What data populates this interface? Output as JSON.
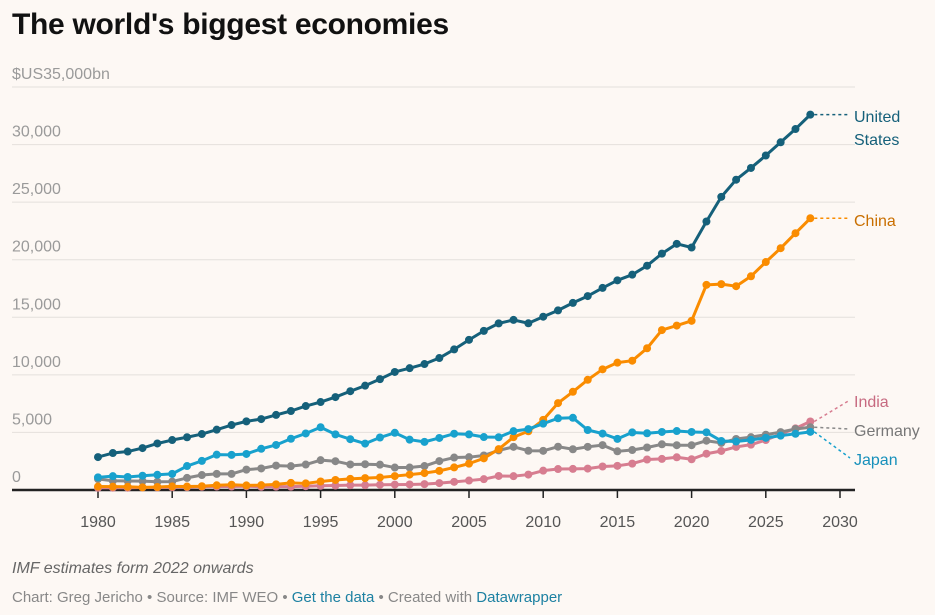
{
  "header": {
    "title": "The world's biggest economies"
  },
  "footer": {
    "note": "IMF estimates form 2022 onwards",
    "credit_prefix": "Chart: Greg Jericho • Source: IMF WEO • ",
    "get_data_link": "Get the data",
    "separator": " • Created with ",
    "datawrapper_link": "Datawrapper"
  },
  "chart_data": {
    "type": "line",
    "title": "The world's biggest economies",
    "xlabel": "",
    "ylabel": "$US bn",
    "ylim": [
      0,
      35000
    ],
    "xlim": [
      1980,
      2030
    ],
    "grid": true,
    "y_ticks": [
      0,
      5000,
      10000,
      15000,
      20000,
      25000,
      30000,
      35000
    ],
    "y_tick_labels": [
      "0",
      "5,000",
      "10,000",
      "15,000",
      "20,000",
      "25,000",
      "30,000",
      "$US35,000bn"
    ],
    "x_ticks": [
      1980,
      1985,
      1990,
      1995,
      2000,
      2005,
      2010,
      2015,
      2020,
      2025,
      2030
    ],
    "x_tick_labels": [
      "1980",
      "1985",
      "1990",
      "1995",
      "2000",
      "2005",
      "2010",
      "2015",
      "2020",
      "2025",
      "2030"
    ],
    "legend": "direct-labels-right",
    "annotation": "IMF estimates form 2022 onwards",
    "x": [
      1980,
      1981,
      1982,
      1983,
      1984,
      1985,
      1986,
      1987,
      1988,
      1989,
      1990,
      1991,
      1992,
      1993,
      1994,
      1995,
      1996,
      1997,
      1998,
      1999,
      2000,
      2001,
      2002,
      2003,
      2004,
      2005,
      2006,
      2007,
      2008,
      2009,
      2010,
      2011,
      2012,
      2013,
      2014,
      2015,
      2016,
      2017,
      2018,
      2019,
      2020,
      2021,
      2022,
      2023,
      2024,
      2025,
      2026,
      2027,
      2028
    ],
    "series": [
      {
        "name": "United States",
        "label": "United States",
        "color": "#15607a",
        "values": [
          2860,
          3210,
          3340,
          3640,
          4040,
          4340,
          4580,
          4860,
          5240,
          5640,
          5960,
          6160,
          6520,
          6860,
          7290,
          7640,
          8070,
          8580,
          9060,
          9630,
          10250,
          10580,
          10940,
          11460,
          12210,
          13040,
          13820,
          14470,
          14770,
          14480,
          15050,
          15600,
          16250,
          16840,
          17550,
          18210,
          18700,
          19480,
          20530,
          21380,
          21060,
          23320,
          25460,
          26950,
          27970,
          29050,
          30200,
          31350,
          32600
        ]
      },
      {
        "name": "China",
        "label": "China",
        "color": "#fa8c00",
        "values": [
          300,
          290,
          280,
          230,
          260,
          310,
          300,
          330,
          410,
          460,
          400,
          420,
          490,
          620,
          570,
          740,
          870,
          970,
          1030,
          1090,
          1210,
          1340,
          1470,
          1660,
          1960,
          2290,
          2750,
          3550,
          4590,
          5100,
          6090,
          7550,
          8530,
          9570,
          10480,
          11060,
          11230,
          12310,
          13890,
          14280,
          14690,
          17820,
          17880,
          17700,
          18560,
          19800,
          21000,
          22300,
          23600
        ]
      },
      {
        "name": "Japan",
        "label": "Japan",
        "color": "#18a1cd",
        "values": [
          1100,
          1200,
          1130,
          1240,
          1320,
          1400,
          2080,
          2530,
          3070,
          3050,
          3130,
          3580,
          3910,
          4450,
          4910,
          5450,
          4830,
          4410,
          4030,
          4560,
          4970,
          4370,
          4180,
          4520,
          4890,
          4830,
          4600,
          4580,
          5110,
          5290,
          5760,
          6230,
          6270,
          5210,
          4900,
          4440,
          5000,
          4930,
          5040,
          5120,
          5040,
          5010,
          4260,
          4210,
          4350,
          4530,
          4720,
          4880,
          5050
        ]
      },
      {
        "name": "Germany",
        "label": "Germany",
        "color": "#888888",
        "values": [
          950,
          800,
          780,
          770,
          720,
          730,
          1050,
          1300,
          1400,
          1400,
          1770,
          1870,
          2120,
          2070,
          2210,
          2590,
          2500,
          2220,
          2240,
          2200,
          1950,
          1950,
          2080,
          2510,
          2820,
          2850,
          3000,
          3440,
          3750,
          3410,
          3400,
          3760,
          3540,
          3750,
          3900,
          3360,
          3470,
          3690,
          3970,
          3890,
          3890,
          4280,
          4090,
          4430,
          4590,
          4800,
          5030,
          5300,
          5450
        ]
      },
      {
        "name": "India",
        "label": "India",
        "color": "#d77d90",
        "values": [
          190,
          200,
          200,
          220,
          220,
          240,
          250,
          280,
          300,
          300,
          330,
          280,
          290,
          290,
          330,
          370,
          390,
          420,
          420,
          460,
          470,
          480,
          510,
          600,
          710,
          820,
          940,
          1220,
          1200,
          1340,
          1680,
          1820,
          1830,
          1860,
          2040,
          2100,
          2290,
          2650,
          2700,
          2840,
          2670,
          3150,
          3390,
          3740,
          3940,
          4340,
          4850,
          5350,
          5950
        ]
      }
    ]
  }
}
